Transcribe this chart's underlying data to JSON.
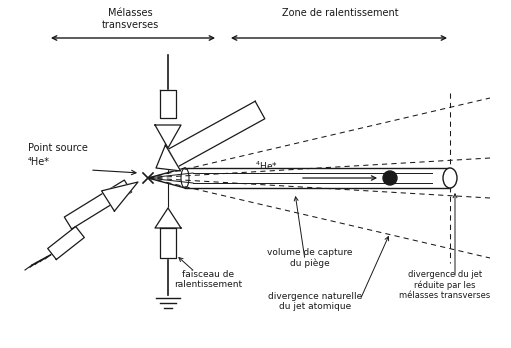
{
  "bg_color": "#ffffff",
  "line_color": "#1a1a1a",
  "figsize": [
    5.11,
    3.48
  ],
  "dpi": 100,
  "labels": {
    "melasses_transverses": "Mélasses\ntransverses",
    "zone_ralentissement": "Zone de ralentissement",
    "point_source_line1": "Point source",
    "point_source_line2": "⁴He*",
    "he_beam": "⁴He*",
    "faisceau": "faisceau de\nralentissement",
    "volume_capture": "volume de capture\ndu piège",
    "divergence_naturelle": "divergence naturelle\ndu jet atomique",
    "divergence_reduite": "divergence du jet\nréduite par les\nmélasses transverses"
  }
}
